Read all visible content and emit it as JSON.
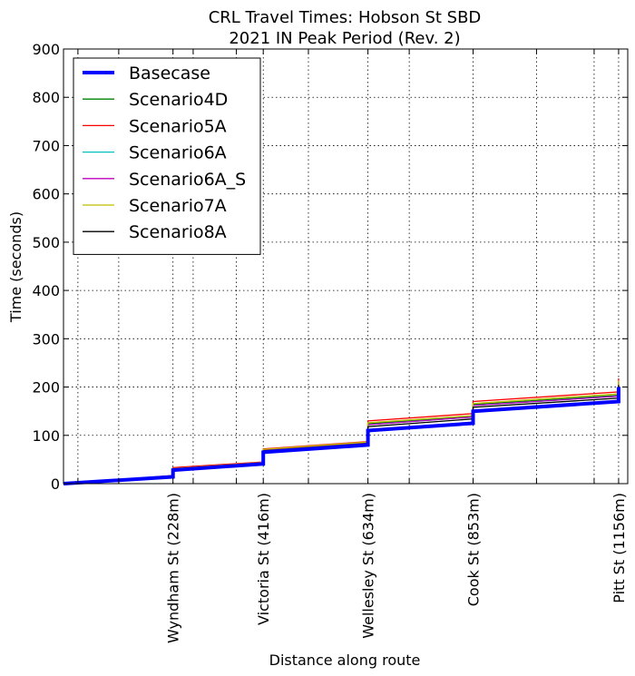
{
  "chart_data": {
    "type": "line",
    "title": "CRL Travel Times: Hobson St SBD",
    "subtitle": "2021 IN Peak Period (Rev. 2)",
    "xlabel": "Distance along route",
    "ylabel": "Time (seconds)",
    "xlim": [
      0,
      1175
    ],
    "ylim": [
      0,
      900
    ],
    "yticks": [
      0,
      100,
      200,
      300,
      400,
      500,
      600,
      700,
      800,
      900
    ],
    "xtick_labels": [
      {
        "label": "Wyndham St (228m)",
        "x": 228
      },
      {
        "label": "Victoria St (416m)",
        "x": 416
      },
      {
        "label": "Wellesley St (634m)",
        "x": 634
      },
      {
        "label": "Cook St (853m)",
        "x": 853
      },
      {
        "label": "Pitt St (1156m)",
        "x": 1156
      }
    ],
    "minor_x_ticks": [
      30,
      115,
      270,
      360,
      510,
      720,
      985,
      1105
    ],
    "grid": true,
    "legend_position": "upper-left",
    "series": [
      {
        "name": "Basecase",
        "color": "#0000ff",
        "width": 4,
        "points": [
          [
            0,
            0
          ],
          [
            228,
            14
          ],
          [
            228,
            28
          ],
          [
            416,
            41
          ],
          [
            416,
            65
          ],
          [
            634,
            80
          ],
          [
            634,
            110
          ],
          [
            853,
            125
          ],
          [
            853,
            150
          ],
          [
            1156,
            170
          ],
          [
            1156,
            200
          ]
        ]
      },
      {
        "name": "Scenario4D",
        "color": "#008000",
        "width": 1.3,
        "points": [
          [
            0,
            0
          ],
          [
            228,
            16
          ],
          [
            228,
            31
          ],
          [
            416,
            44
          ],
          [
            416,
            70
          ],
          [
            634,
            85
          ],
          [
            634,
            124
          ],
          [
            853,
            140
          ],
          [
            853,
            164
          ],
          [
            1156,
            183
          ],
          [
            1156,
            210
          ]
        ]
      },
      {
        "name": "Scenario5A",
        "color": "#ff0000",
        "width": 1.3,
        "points": [
          [
            0,
            0
          ],
          [
            228,
            17
          ],
          [
            228,
            33
          ],
          [
            416,
            45
          ],
          [
            416,
            72
          ],
          [
            634,
            87
          ],
          [
            634,
            130
          ],
          [
            853,
            145
          ],
          [
            853,
            170
          ],
          [
            1156,
            190
          ],
          [
            1156,
            218
          ]
        ]
      },
      {
        "name": "Scenario6A",
        "color": "#00bfbf",
        "width": 1.3,
        "points": [
          [
            0,
            0
          ],
          [
            228,
            16
          ],
          [
            228,
            31
          ],
          [
            416,
            43
          ],
          [
            416,
            69
          ],
          [
            634,
            84
          ],
          [
            634,
            122
          ],
          [
            853,
            138
          ],
          [
            853,
            162
          ],
          [
            1156,
            181
          ],
          [
            1156,
            208
          ]
        ]
      },
      {
        "name": "Scenario6A_S",
        "color": "#bf00bf",
        "width": 1.3,
        "points": [
          [
            0,
            0
          ],
          [
            228,
            16
          ],
          [
            228,
            31
          ],
          [
            416,
            43
          ],
          [
            416,
            69
          ],
          [
            634,
            84
          ],
          [
            634,
            122
          ],
          [
            853,
            138
          ],
          [
            853,
            162
          ],
          [
            1156,
            181
          ],
          [
            1156,
            208
          ]
        ]
      },
      {
        "name": "Scenario7A",
        "color": "#bfbf00",
        "width": 1.3,
        "points": [
          [
            0,
            0
          ],
          [
            228,
            16
          ],
          [
            228,
            31
          ],
          [
            416,
            44
          ],
          [
            416,
            71
          ],
          [
            634,
            86
          ],
          [
            634,
            126
          ],
          [
            853,
            141
          ],
          [
            853,
            166
          ],
          [
            1156,
            186
          ],
          [
            1156,
            213
          ]
        ]
      },
      {
        "name": "Scenario8A",
        "color": "#000000",
        "width": 1.3,
        "points": [
          [
            0,
            0
          ],
          [
            228,
            15
          ],
          [
            228,
            30
          ],
          [
            416,
            43
          ],
          [
            416,
            68
          ],
          [
            634,
            83
          ],
          [
            634,
            118
          ],
          [
            853,
            134
          ],
          [
            853,
            158
          ],
          [
            1156,
            177
          ],
          [
            1156,
            204
          ]
        ]
      }
    ]
  }
}
